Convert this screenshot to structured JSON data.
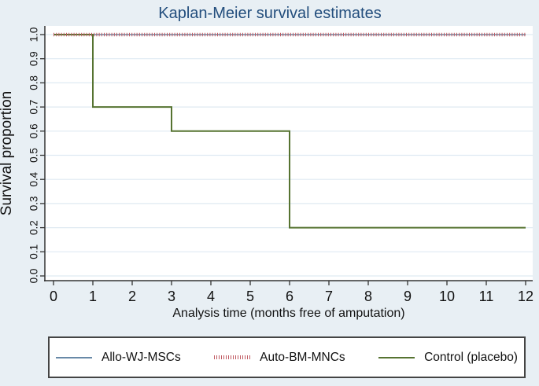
{
  "colors": {
    "background": "#e8eff4",
    "plot_background": "#ffffff",
    "title": "#234e7d",
    "axis": "#333333",
    "grid": "#dfeaf2",
    "text": "#111111",
    "legend_border": "#444444",
    "legend_background": "#ffffff"
  },
  "chart_data": {
    "type": "line",
    "subtype": "kaplan-meier-step",
    "title": "Kaplan-Meier survival estimates",
    "xlabel": "Analysis time (months free of amputation)",
    "ylabel": "Survival proportion",
    "xlim": [
      0,
      12
    ],
    "ylim": [
      0.0,
      1.0
    ],
    "x_ticks": [
      0,
      1,
      2,
      3,
      4,
      5,
      6,
      7,
      8,
      9,
      10,
      11,
      12
    ],
    "x_tick_labels": [
      "0",
      "1",
      "2",
      "3",
      "4",
      "5",
      "6",
      "7",
      "8",
      "9",
      "10",
      "11",
      "12"
    ],
    "y_ticks": [
      0.0,
      0.1,
      0.2,
      0.3,
      0.4,
      0.5,
      0.6,
      0.7,
      0.8,
      0.9,
      1.0
    ],
    "y_tick_labels": [
      "0.0",
      "0.1",
      "0.2",
      "0.3",
      "0.4",
      "0.5",
      "0.6",
      "0.7",
      "0.8",
      "0.9",
      "1.0"
    ],
    "grid": "horizontal",
    "legend_position": "bottom",
    "series": [
      {
        "name": "Allo-WJ-MSCs",
        "color": "#6889a7",
        "line_style": "solid",
        "points": [
          [
            0,
            1.0
          ],
          [
            12,
            1.0
          ]
        ]
      },
      {
        "name": "Auto-BM-MNCs",
        "color": "#c05a62",
        "line_style": "dotted",
        "points": [
          [
            0,
            1.0
          ],
          [
            12,
            1.0
          ]
        ]
      },
      {
        "name": "Control (placebo)",
        "color": "#567331",
        "line_style": "solid",
        "points": [
          [
            0,
            1.0
          ],
          [
            1,
            1.0
          ],
          [
            1,
            0.7
          ],
          [
            3,
            0.7
          ],
          [
            3,
            0.6
          ],
          [
            6,
            0.6
          ],
          [
            6,
            0.2
          ],
          [
            12,
            0.2
          ]
        ]
      }
    ]
  }
}
